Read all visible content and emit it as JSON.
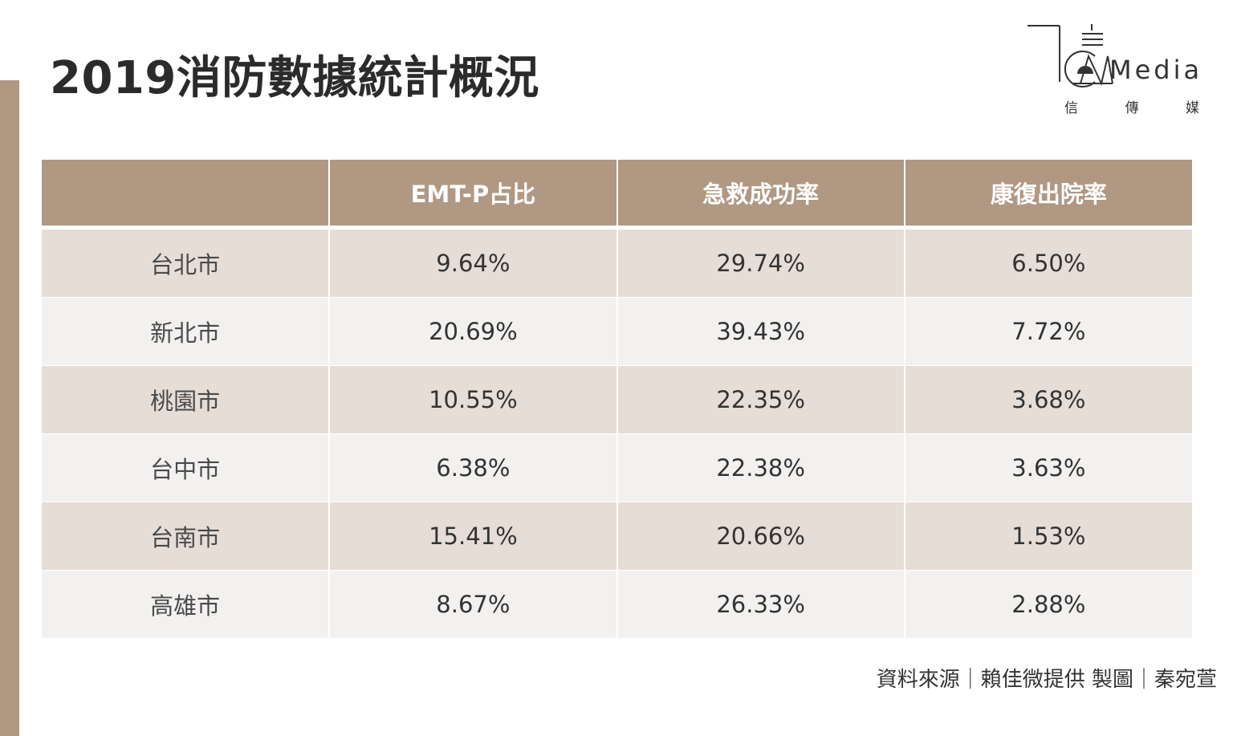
{
  "title": "2019消防數據統計概況",
  "logo": {
    "text": "Media",
    "subtitle": [
      "信",
      "傳",
      "媒"
    ]
  },
  "chart_data": {
    "type": "table",
    "title": "2019消防數據統計概況",
    "columns": [
      "",
      "EMT-P占比",
      "急救成功率",
      "康復出院率"
    ],
    "rows": [
      {
        "city": "台北市",
        "values": [
          "9.64%",
          "29.74%",
          "6.50%"
        ]
      },
      {
        "city": "新北市",
        "values": [
          "20.69%",
          "39.43%",
          "7.72%"
        ]
      },
      {
        "city": "桃園市",
        "values": [
          "10.55%",
          "22.35%",
          "3.68%"
        ]
      },
      {
        "city": "台中市",
        "values": [
          "6.38%",
          "22.38%",
          "3.63%"
        ]
      },
      {
        "city": "台南市",
        "values": [
          "15.41%",
          "20.66%",
          "1.53%"
        ]
      },
      {
        "city": "高雄市",
        "values": [
          "8.67%",
          "26.33%",
          "2.88%"
        ]
      }
    ]
  },
  "source": "資料來源｜賴佳微提供 製圖｜秦宛萱",
  "colors": {
    "accent": "#b09882",
    "row_dark": "#e6ddd7",
    "row_light": "#f3f1ef"
  }
}
